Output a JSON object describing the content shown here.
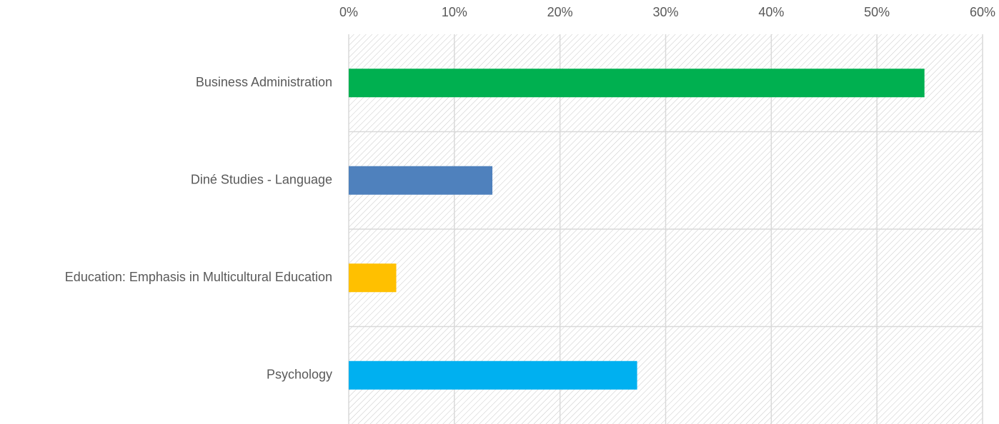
{
  "chart_data": {
    "type": "bar",
    "orientation": "horizontal",
    "categories": [
      "Business Administration",
      "Diné Studies - Language",
      "Education: Emphasis in Multicultural Education",
      "Psychology"
    ],
    "values": [
      54.5,
      13.6,
      4.5,
      27.3
    ],
    "colors": [
      "#00b050",
      "#4f81bd",
      "#ffc000",
      "#00b0f0"
    ],
    "xlim": [
      0,
      60
    ],
    "xticks": [
      {
        "value": 0,
        "label": "0%"
      },
      {
        "value": 10,
        "label": "10%"
      },
      {
        "value": 20,
        "label": "20%"
      },
      {
        "value": 30,
        "label": "30%"
      },
      {
        "value": 40,
        "label": "40%"
      },
      {
        "value": 50,
        "label": "50%"
      },
      {
        "value": 60,
        "label": "60%"
      }
    ],
    "grid": true
  }
}
